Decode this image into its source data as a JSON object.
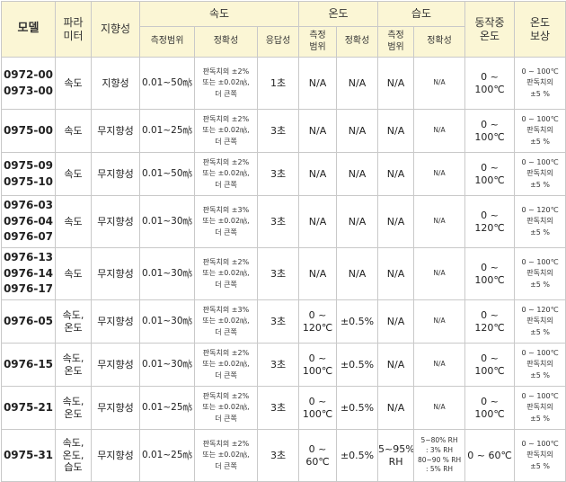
{
  "headers": {
    "model": "모델",
    "parameter": "파라\n미터",
    "directionality": "지향성",
    "velocity": "속도",
    "temperature": "온도",
    "humidity": "습도",
    "operating_temp": "동작중\n온도",
    "temp_comp": "온도\n보상",
    "vel_range": "측정범위",
    "vel_accuracy": "정확성",
    "vel_response": "응답성",
    "temp_range": "측정\n범위",
    "temp_accuracy": "정확성",
    "hum_range": "측정\n범위",
    "hum_accuracy": "정확성"
  },
  "rows": [
    {
      "model": "0972-00\n0973-00",
      "param": "속도",
      "dir": "지향성",
      "vel_range": "0.01~50㎧",
      "vel_acc": "판독치의 ±2%\n또는 ±0.02㎧,\n더 큰쪽",
      "response": "1초",
      "temp_range": "N/A",
      "temp_acc": "N/A",
      "hum_range": "N/A",
      "hum_acc": "N/A",
      "op_temp": "0 ~ 100℃",
      "comp": "0 ~ 100℃\n판독치의\n±5 %"
    },
    {
      "model": "0975-00",
      "param": "속도",
      "dir": "무지향성",
      "vel_range": "0.01~25㎧",
      "vel_acc": "판독치의 ±2%\n또는 ±0.02㎧,\n더 큰쪽",
      "response": "3초",
      "temp_range": "N/A",
      "temp_acc": "N/A",
      "hum_range": "N/A",
      "hum_acc": "N/A",
      "op_temp": "0 ~ 100℃",
      "comp": "0 ~ 100℃\n판독치의\n±5 %"
    },
    {
      "model": "0975-09\n0975-10",
      "param": "속도",
      "dir": "무지향성",
      "vel_range": "0.01~50㎧",
      "vel_acc": "판독치의 ±2%\n또는 ±0.02㎧,\n더 큰쪽",
      "response": "3초",
      "temp_range": "N/A",
      "temp_acc": "N/A",
      "hum_range": "N/A",
      "hum_acc": "N/A",
      "op_temp": "0 ~ 100℃",
      "comp": "0 ~ 100℃\n판독치의\n±5 %"
    },
    {
      "model": "0976-03\n0976-04\n0976-07",
      "param": "속도",
      "dir": "무지향성",
      "vel_range": "0.01~30㎧",
      "vel_acc": "판독치의 ±3%\n또는 ±0.02㎧,\n더 큰쪽",
      "response": "3초",
      "temp_range": "N/A",
      "temp_acc": "N/A",
      "hum_range": "N/A",
      "hum_acc": "N/A",
      "op_temp": "0 ~ 120℃",
      "comp": "0 ~ 120℃\n판독치의\n±5 %"
    },
    {
      "model": "0976-13\n0976-14\n0976-17",
      "param": "속도",
      "dir": "무지향성",
      "vel_range": "0.01~30㎧",
      "vel_acc": "판독치의 ±2%\n또는 ±0.02㎧,\n더 큰쪽",
      "response": "3초",
      "temp_range": "N/A",
      "temp_acc": "N/A",
      "hum_range": "N/A",
      "hum_acc": "N/A",
      "op_temp": "0 ~ 100℃",
      "comp": "0 ~ 100℃\n판독치의\n±5 %"
    },
    {
      "model": "0976-05",
      "param": "속도,\n온도",
      "dir": "무지향성",
      "vel_range": "0.01~30㎧",
      "vel_acc": "판독치의 ±3%\n또는 ±0.02㎧,\n더 큰쪽",
      "response": "3초",
      "temp_range": "0 ~\n120℃",
      "temp_acc": "±0.5%",
      "hum_range": "N/A",
      "hum_acc": "N/A",
      "op_temp": "0 ~ 120℃",
      "comp": "0 ~ 120℃\n판독치의\n±5 %"
    },
    {
      "model": "0976-15",
      "param": "속도,\n온도",
      "dir": "무지향성",
      "vel_range": "0.01~30㎧",
      "vel_acc": "판독치의 ±2%\n또는 ±0.02㎧,\n더 큰쪽",
      "response": "3초",
      "temp_range": "0 ~\n100℃",
      "temp_acc": "±0.5%",
      "hum_range": "N/A",
      "hum_acc": "N/A",
      "op_temp": "0 ~ 100℃",
      "comp": "0 ~ 100℃\n판독치의\n±5 %"
    },
    {
      "model": "0975-21",
      "param": "속도,\n온도",
      "dir": "무지향성",
      "vel_range": "0.01~25㎧",
      "vel_acc": "판독치의 ±2%\n또는 ±0.02㎧,\n더 큰쪽",
      "response": "3초",
      "temp_range": "0 ~\n100℃",
      "temp_acc": "±0.5%",
      "hum_range": "N/A",
      "hum_acc": "N/A",
      "op_temp": "0 ~ 100℃",
      "comp": "0 ~ 100℃\n판독치의\n±5 %"
    },
    {
      "model": "0975-31",
      "param": "속도,\n온도,\n습도",
      "dir": "무지향성",
      "vel_range": "0.01~25㎧",
      "vel_acc": "판독치의 ±2%\n또는 ±0.02㎧,\n더 큰쪽",
      "response": "3초",
      "temp_range": "0 ~\n60℃",
      "temp_acc": "±0.5%",
      "hum_range": "5~95%\nRH",
      "hum_acc": "5~80% RH\n: 3% RH\n80~90 % RH\n: 5% RH",
      "op_temp": "0 ~ 60℃",
      "comp": "0 ~ 100℃\n판독치의\n±5 %"
    }
  ]
}
